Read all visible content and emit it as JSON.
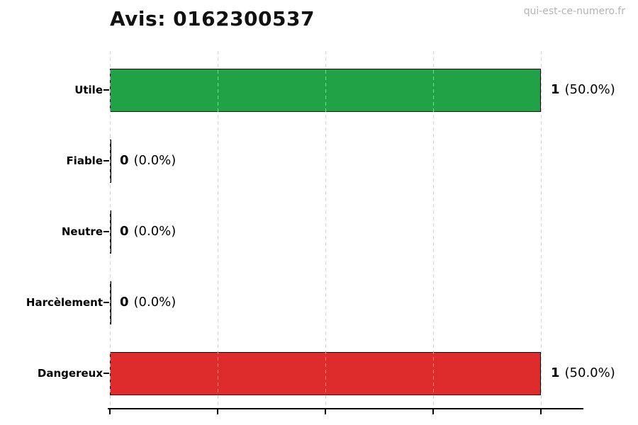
{
  "header": {
    "watermark": "qui-est-ce-numero.fr"
  },
  "chart_data": {
    "type": "bar",
    "orientation": "horizontal",
    "title": "Avis: 0162300537",
    "categories": [
      "Utile",
      "Fiable",
      "Neutre",
      "Harcèlement",
      "Dangereux"
    ],
    "values": [
      1,
      0,
      0,
      0,
      1
    ],
    "value_labels": [
      "1",
      "0",
      "0",
      "0",
      "1"
    ],
    "pct_labels": [
      "(50.0%)",
      "(0.0%)",
      "(0.0%)",
      "(0.0%)",
      "(50.0%)"
    ],
    "bar_colors": [
      "#22a246",
      "#000000",
      "#000000",
      "#000000",
      "#de2b2b"
    ],
    "bar_edge_color": "#000000",
    "xlabel": "",
    "ylabel": "",
    "xlim": [
      0,
      1.1
    ],
    "x_ticks": [
      0,
      0.25,
      0.5,
      0.75,
      1.0
    ],
    "grid": {
      "axis": "x",
      "style": "dashed",
      "color": "#d0d0d0"
    },
    "legend": "none"
  }
}
